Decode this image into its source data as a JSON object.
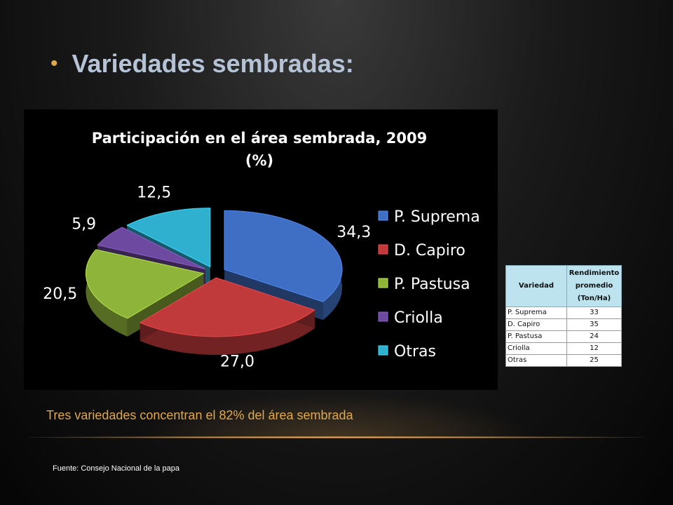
{
  "slide": {
    "bullet": "•",
    "title": "Variedades sembradas:",
    "caption": "Tres variedades concentran el 82% del área sembrada",
    "source": "Fuente: Consejo Nacional de la papa"
  },
  "chart_data": {
    "type": "pie",
    "title": "Participación en el área sembrada, 2009",
    "subtitle": "(%)",
    "categories": [
      "P. Suprema",
      "D. Capiro",
      "P. Pastusa",
      "Criolla",
      "Otras"
    ],
    "values": [
      34.3,
      27.0,
      20.5,
      5.9,
      12.5
    ],
    "value_labels": [
      "34,3",
      "27,0",
      "20,5",
      "5,9",
      "12,5"
    ],
    "colors": [
      "#3f6fc4",
      "#c0393b",
      "#8fb43a",
      "#6d4aa0",
      "#2fb0cf"
    ],
    "legend_position": "right",
    "style": "3d-exploded"
  },
  "table": {
    "headers": [
      "Variedad",
      "Rendimiento promedio (Ton/Ha)"
    ],
    "rows": [
      [
        "P. Suprema",
        "33"
      ],
      [
        "D. Capiro",
        "35"
      ],
      [
        "P. Pastusa",
        "24"
      ],
      [
        "Criolla",
        "12"
      ],
      [
        "Otras",
        "25"
      ]
    ]
  }
}
